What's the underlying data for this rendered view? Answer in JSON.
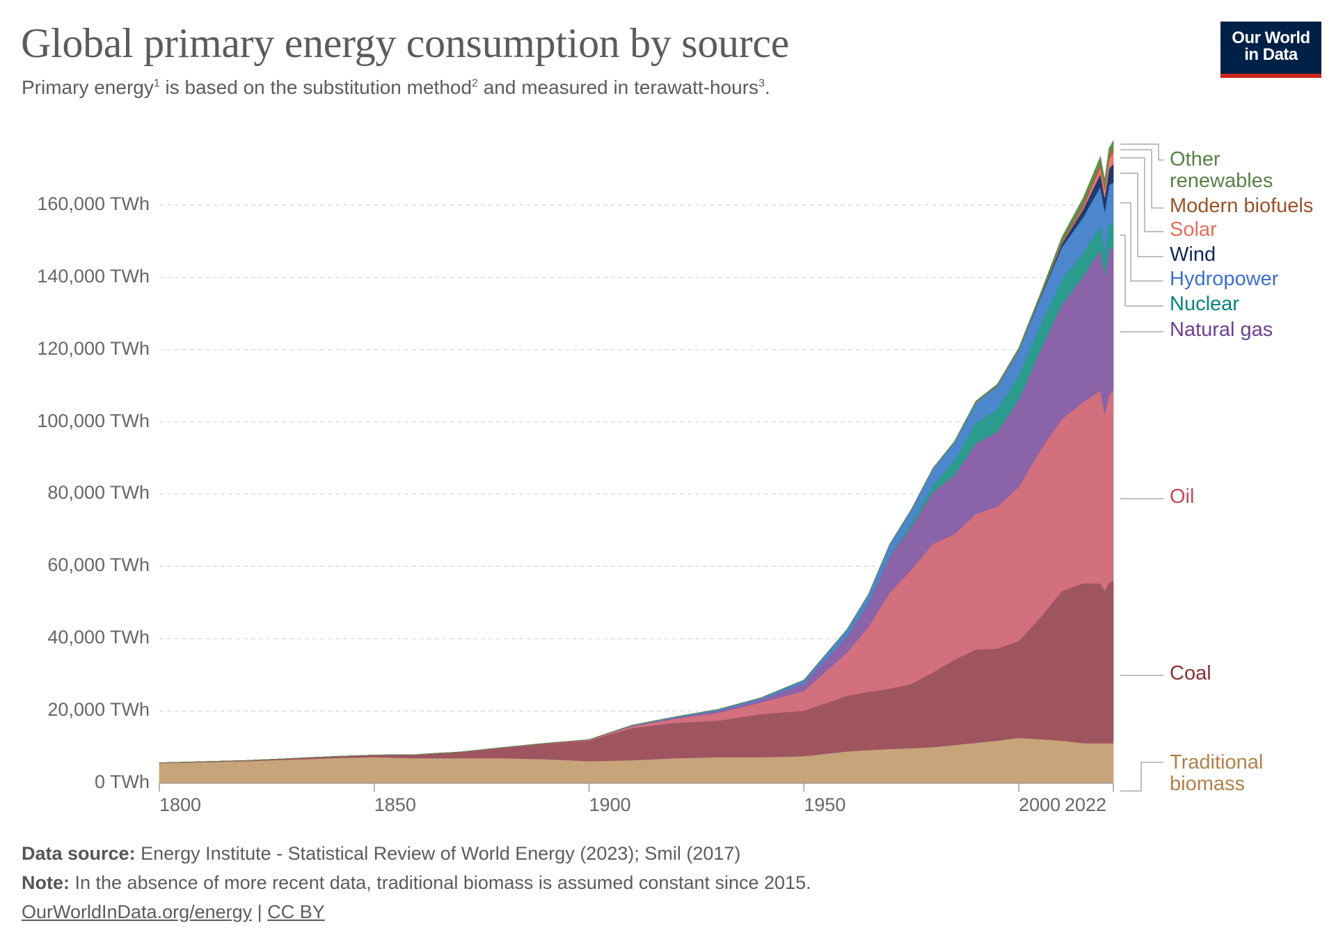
{
  "header": {
    "title": "Global primary energy consumption by source",
    "subtitle_parts": [
      "Primary energy",
      "1",
      " is based on the substitution method",
      "2",
      " and measured in terawatt-hours",
      "3",
      "."
    ],
    "logo_line1": "Our World",
    "logo_line2": "in Data",
    "logo_colors": {
      "background": "#002147",
      "accent": "#ce261e"
    }
  },
  "footer": {
    "source_label": "Data source:",
    "source_text": " Energy Institute - Statistical Review of World Energy (2023); Smil (2017)",
    "note_label": "Note:",
    "note_text": " In the absence of more recent data, traditional biomass is assumed constant since 2015.",
    "link": "OurWorldInData.org/energy",
    "separator": " | ",
    "license": "CC BY"
  },
  "chart_data": {
    "type": "area",
    "stacked": true,
    "title": "Global primary energy consumption by source",
    "xlabel": "",
    "ylabel": "",
    "xlim": [
      1800,
      2022
    ],
    "ylim": [
      0,
      180000
    ],
    "grid": true,
    "legend_placement": "right (inline labels)",
    "x_ticks": [
      "1800",
      "1850",
      "1900",
      "1950",
      "2000",
      "2022"
    ],
    "y_ticks": [
      "0 TWh",
      "20,000 TWh",
      "40,000 TWh",
      "60,000 TWh",
      "80,000 TWh",
      "100,000 TWh",
      "120,000 TWh",
      "140,000 TWh",
      "160,000 TWh"
    ],
    "unit": "TWh",
    "x": [
      1800,
      1810,
      1820,
      1830,
      1840,
      1850,
      1860,
      1870,
      1880,
      1890,
      1900,
      1910,
      1920,
      1930,
      1940,
      1950,
      1960,
      1965,
      1970,
      1975,
      1980,
      1985,
      1990,
      1995,
      2000,
      2005,
      2010,
      2015,
      2019,
      2020,
      2021,
      2022
    ],
    "series": [
      {
        "name": "Traditional biomass",
        "color": "#c8a47a",
        "label_color": "#b17f4a",
        "values": [
          5556,
          5833,
          6111,
          6528,
          6944,
          7222,
          6944,
          6944,
          6944,
          6667,
          6111,
          6389,
          6944,
          7222,
          7222,
          7500,
          8800,
          9200,
          9500,
          9700,
          10000,
          10600,
          11200,
          11800,
          12560,
          12200,
          11800,
          11100,
          11100,
          11100,
          11100,
          11100
        ]
      },
      {
        "name": "Coal",
        "color": "#9e5560",
        "label_color": "#883039",
        "values": [
          97,
          130,
          170,
          280,
          420,
          570,
          1000,
          1700,
          2900,
          4300,
          5700,
          8900,
          9800,
          10100,
          11900,
          12600,
          15400,
          16100,
          16700,
          17800,
          20700,
          23600,
          25800,
          25500,
          26800,
          33700,
          41400,
          44300,
          44200,
          42200,
          44500,
          44900
        ]
      },
      {
        "name": "Oil",
        "color": "#d2707d",
        "label_color": "#c0485c",
        "values": [
          0,
          0,
          0,
          0,
          0,
          0,
          0,
          1,
          50,
          90,
          181,
          500,
          1100,
          2200,
          3200,
          5444,
          12000,
          18000,
          26700,
          31600,
          35600,
          34700,
          37600,
          39200,
          42700,
          46300,
          47600,
          50100,
          53400,
          48800,
          51800,
          52900
        ]
      },
      {
        "name": "Natural gas",
        "color": "#8a63a8",
        "label_color": "#6d3e91",
        "values": [
          0,
          0,
          0,
          0,
          0,
          0,
          0,
          0,
          0,
          0,
          64,
          150,
          250,
          550,
          800,
          2092,
          4500,
          6400,
          10000,
          12000,
          14300,
          16300,
          19500,
          20700,
          24100,
          27500,
          31600,
          34800,
          39000,
          38400,
          40300,
          39400
        ]
      },
      {
        "name": "Nuclear",
        "color": "#2a9b8c",
        "label_color": "#00847e",
        "values": [
          0,
          0,
          0,
          0,
          0,
          0,
          0,
          0,
          0,
          0,
          0,
          0,
          0,
          0,
          0,
          0,
          0,
          180,
          260,
          1000,
          1900,
          4100,
          5600,
          6300,
          6700,
          7100,
          7000,
          6500,
          6900,
          6700,
          6900,
          6700
        ]
      },
      {
        "name": "Hydropower",
        "color": "#4c86cc",
        "label_color": "#3c6ecf",
        "values": [
          0,
          0,
          0,
          0,
          0,
          0,
          0,
          0,
          0,
          0,
          0,
          100,
          250,
          350,
          500,
          900,
          1800,
          2300,
          3000,
          3600,
          4500,
          5000,
          5600,
          6400,
          6900,
          7500,
          8900,
          9900,
          10600,
          11000,
          11000,
          11200
        ]
      },
      {
        "name": "Wind",
        "color": "#1e3a6e",
        "label_color": "#0f2656",
        "values": [
          0,
          0,
          0,
          0,
          0,
          0,
          0,
          0,
          0,
          0,
          0,
          0,
          0,
          0,
          0,
          0,
          0,
          0,
          0,
          0,
          0,
          0,
          0,
          20,
          80,
          270,
          900,
          2200,
          3500,
          3900,
          4500,
          5200
        ]
      },
      {
        "name": "Solar",
        "color": "#e8776a",
        "label_color": "#e56e5a",
        "values": [
          0,
          0,
          0,
          0,
          0,
          0,
          0,
          0,
          0,
          0,
          0,
          0,
          0,
          0,
          0,
          0,
          0,
          0,
          0,
          0,
          0,
          0,
          0,
          0,
          0,
          10,
          80,
          660,
          1800,
          2100,
          2600,
          3300
        ]
      },
      {
        "name": "Modern biofuels",
        "color": "#b0603c",
        "label_color": "#9a5129",
        "values": [
          0,
          0,
          0,
          0,
          0,
          0,
          0,
          0,
          0,
          0,
          0,
          0,
          0,
          0,
          0,
          0,
          0,
          0,
          0,
          0,
          0,
          0,
          100,
          100,
          120,
          230,
          640,
          850,
          1100,
          1000,
          1100,
          1200
        ]
      },
      {
        "name": "Other renewables",
        "color": "#5a8f4f",
        "label_color": "#578145",
        "values": [
          0,
          0,
          0,
          0,
          0,
          0,
          0,
          0,
          0,
          0,
          0,
          0,
          0,
          0,
          0,
          0,
          0,
          50,
          70,
          100,
          150,
          260,
          340,
          400,
          500,
          600,
          1100,
          1600,
          1800,
          1800,
          1900,
          1900
        ]
      }
    ]
  }
}
